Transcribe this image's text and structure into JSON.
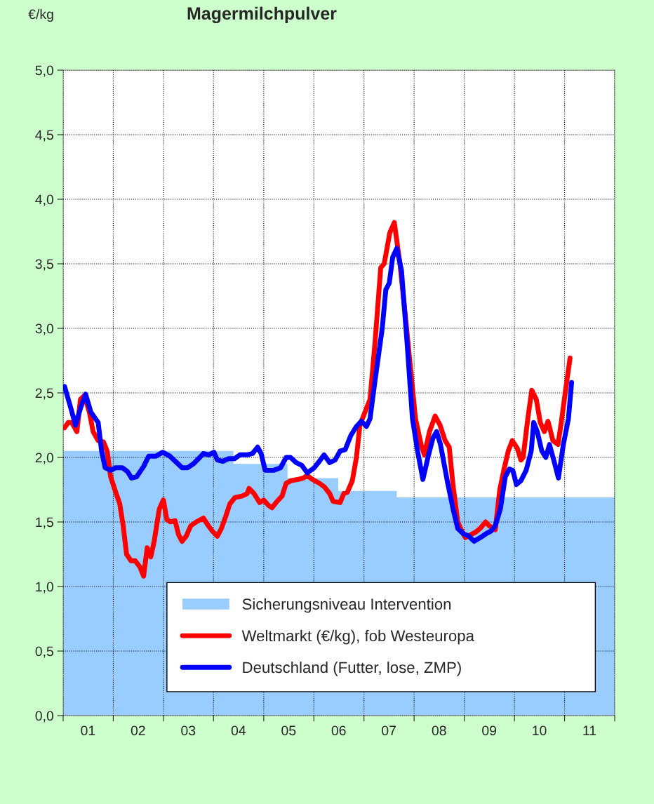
{
  "chart_data": {
    "type": "line",
    "title": "Magermilchpulver",
    "ylabel": "€/kg",
    "xlim": [
      "2001-01-01",
      "2012-01-01"
    ],
    "xticks": [
      {
        "value": "2001-01-01",
        "label": null
      },
      {
        "value": "2001-07-01",
        "label": "01"
      },
      {
        "value": "2002-01-01",
        "label": null
      },
      {
        "value": "2002-07-01",
        "label": "02"
      },
      {
        "value": "2003-01-01",
        "label": null
      },
      {
        "value": "2003-07-01",
        "label": "03"
      },
      {
        "value": "2004-01-01",
        "label": null
      },
      {
        "value": "2004-07-01",
        "label": "04"
      },
      {
        "value": "2005-01-01",
        "label": null
      },
      {
        "value": "2005-07-01",
        "label": "05"
      },
      {
        "value": "2006-01-01",
        "label": null
      },
      {
        "value": "2006-07-01",
        "label": "06"
      },
      {
        "value": "2007-01-01",
        "label": null
      },
      {
        "value": "2007-07-01",
        "label": "07"
      },
      {
        "value": "2008-01-01",
        "label": null
      },
      {
        "value": "2008-07-01",
        "label": "08"
      },
      {
        "value": "2009-01-01",
        "label": null
      },
      {
        "value": "2009-07-01",
        "label": "09"
      },
      {
        "value": "2010-01-01",
        "label": null
      },
      {
        "value": "2010-07-01",
        "label": "10"
      },
      {
        "value": "2011-01-01",
        "label": null
      },
      {
        "value": "2011-07-01",
        "label": "11"
      },
      {
        "value": "2012-01-01",
        "label": null
      }
    ],
    "ylim": [
      0,
      5
    ],
    "yticks": [
      {
        "value": 0,
        "label": "0,0"
      },
      {
        "value": 0.5,
        "label": "0,5"
      },
      {
        "value": 1,
        "label": "1,0"
      },
      {
        "value": 1.5,
        "label": "1,5"
      },
      {
        "value": 2,
        "label": "2,0"
      },
      {
        "value": 2.5,
        "label": "2,5"
      },
      {
        "value": 3,
        "label": "3,0"
      },
      {
        "value": 3.5,
        "label": "3,5"
      },
      {
        "value": 4,
        "label": "4,0"
      },
      {
        "value": 4.5,
        "label": "4,5"
      },
      {
        "value": 5,
        "label": "5,0"
      }
    ],
    "grid": true,
    "legend": "bottom right",
    "line_style": "solid",
    "series": [
      {
        "type": "area",
        "name": "Sicherungsniveau Intervention",
        "color": "#99ccff",
        "x": [
          "2001-01-01",
          "2004-05-25",
          "2004-05-25",
          "2005-06-23",
          "2005-06-23",
          "2006-06-27",
          "2006-06-27",
          "2007-08-28",
          "2007-08-28",
          "2012-01-01"
        ],
        "values": [
          2.05,
          2.05,
          1.95,
          1.95,
          1.84,
          1.84,
          1.74,
          1.74,
          1.69,
          1.69
        ]
      },
      {
        "type": "line",
        "name": "Weltmarkt (€/kg), fob Westeuropa",
        "color": "#ff0000",
        "x": [
          "2001-01-11",
          "2001-02-07",
          "2001-03-05",
          "2001-04-11",
          "2001-05-07",
          "2001-06-05",
          "2001-07-11",
          "2001-08-07",
          "2001-09-13",
          "2001-10-22",
          "2001-11-17",
          "2001-12-13",
          "2002-01-19",
          "2002-02-17",
          "2002-03-13",
          "2002-04-08",
          "2002-05-10",
          "2002-06-09",
          "2002-07-15",
          "2002-08-10",
          "2002-09-05",
          "2002-10-01",
          "2002-10-26",
          "2002-12-02",
          "2003-01-01",
          "2003-01-26",
          "2003-02-21",
          "2003-03-27",
          "2003-04-22",
          "2003-05-17",
          "2003-06-16",
          "2003-07-19",
          "2003-08-28",
          "2003-10-19",
          "2003-11-25",
          "2003-12-23",
          "2004-01-29",
          "2004-02-28",
          "2004-04-01",
          "2004-04-29",
          "2004-06-05",
          "2004-07-26",
          "2004-09-02",
          "2004-09-16",
          "2004-10-22",
          "2004-12-02",
          "2005-01-01",
          "2005-02-03",
          "2005-03-02",
          "2005-04-08",
          "2005-05-14",
          "2005-06-13",
          "2005-07-19",
          "2005-09-09",
          "2005-10-15",
          "2005-11-14",
          "2005-12-20",
          "2006-02-10",
          "2006-03-20",
          "2006-04-26",
          "2006-05-21",
          "2006-07-11",
          "2006-08-07",
          "2006-09-02",
          "2006-10-08",
          "2006-11-07",
          "2006-12-02",
          "2007-01-08",
          "2007-02-14",
          "2007-03-23",
          "2007-05-03",
          "2007-05-28",
          "2007-07-08",
          "2007-08-10",
          "2007-09-20",
          "2007-10-29",
          "2007-12-05",
          "2008-01-11",
          "2008-02-21",
          "2008-03-16",
          "2008-04-22",
          "2008-06-02",
          "2008-07-08",
          "2008-08-14",
          "2008-09-13",
          "2008-10-11",
          "2008-11-14",
          "2008-12-13",
          "2009-01-08",
          "2009-02-14",
          "2009-03-23",
          "2009-04-26",
          "2009-06-05",
          "2009-07-01",
          "2009-08-14",
          "2009-09-16",
          "2009-10-15",
          "2009-11-17",
          "2009-12-16",
          "2010-01-22",
          "2010-02-17",
          "2010-03-05",
          "2010-04-08",
          "2010-05-07",
          "2010-06-09",
          "2010-07-08",
          "2010-08-07",
          "2010-09-02",
          "2010-10-08",
          "2010-11-14",
          "2010-12-09",
          "2011-01-08",
          "2011-02-10"
        ],
        "values": [
          2.23,
          2.27,
          2.27,
          2.2,
          2.45,
          2.48,
          2.35,
          2.2,
          2.13,
          2.12,
          2.05,
          1.85,
          1.73,
          1.64,
          1.48,
          1.25,
          1.2,
          1.2,
          1.15,
          1.08,
          1.3,
          1.23,
          1.35,
          1.6,
          1.67,
          1.52,
          1.5,
          1.51,
          1.4,
          1.35,
          1.39,
          1.47,
          1.5,
          1.53,
          1.47,
          1.43,
          1.39,
          1.45,
          1.55,
          1.64,
          1.69,
          1.7,
          1.72,
          1.76,
          1.72,
          1.65,
          1.67,
          1.63,
          1.61,
          1.66,
          1.7,
          1.8,
          1.82,
          1.83,
          1.84,
          1.86,
          1.83,
          1.8,
          1.77,
          1.72,
          1.66,
          1.65,
          1.72,
          1.73,
          1.82,
          2.0,
          2.25,
          2.35,
          2.45,
          2.9,
          3.47,
          3.5,
          3.74,
          3.82,
          3.5,
          3.1,
          2.7,
          2.3,
          2.1,
          2.02,
          2.2,
          2.32,
          2.25,
          2.13,
          2.08,
          1.78,
          1.5,
          1.43,
          1.38,
          1.4,
          1.42,
          1.45,
          1.5,
          1.47,
          1.44,
          1.75,
          1.9,
          2.05,
          2.13,
          2.07,
          1.98,
          2.0,
          2.3,
          2.52,
          2.45,
          2.27,
          2.2,
          2.28,
          2.13,
          2.1,
          2.28,
          2.52,
          2.77
        ]
      },
      {
        "type": "line",
        "name": "Deutschland (Futter, lose, ZMP)",
        "color": "#0000ff",
        "x": [
          "2001-01-11",
          "2001-02-21",
          "2001-04-01",
          "2001-05-07",
          "2001-06-13",
          "2001-07-22",
          "2001-09-13",
          "2001-10-08",
          "2001-11-03",
          "2001-12-13",
          "2002-01-19",
          "2002-03-09",
          "2002-04-15",
          "2002-05-14",
          "2002-06-20",
          "2002-08-10",
          "2002-09-16",
          "2002-11-07",
          "2002-12-27",
          "2003-02-17",
          "2003-04-08",
          "2003-05-17",
          "2003-06-27",
          "2003-08-07",
          "2003-09-23",
          "2003-10-19",
          "2003-11-28",
          "2004-01-04",
          "2004-01-29",
          "2004-03-09",
          "2004-04-19",
          "2004-06-02",
          "2004-07-11",
          "2004-09-02",
          "2004-10-11",
          "2004-11-17",
          "2004-12-13",
          "2005-01-11",
          "2005-03-13",
          "2005-05-03",
          "2005-06-13",
          "2005-07-15",
          "2005-08-25",
          "2005-10-04",
          "2005-11-14",
          "2006-01-04",
          "2006-02-10",
          "2006-03-16",
          "2006-04-26",
          "2006-06-05",
          "2006-07-11",
          "2006-08-17",
          "2006-09-27",
          "2006-11-07",
          "2006-12-13",
          "2007-01-19",
          "2007-02-14",
          "2007-03-23",
          "2007-05-14",
          "2007-06-09",
          "2007-07-04",
          "2007-07-29",
          "2007-08-28",
          "2007-10-01",
          "2007-11-10",
          "2007-12-20",
          "2008-01-26",
          "2008-03-05",
          "2008-04-11",
          "2008-05-17",
          "2008-06-13",
          "2008-07-11",
          "2008-09-02",
          "2008-10-11",
          "2008-11-14",
          "2008-12-23",
          "2009-02-03",
          "2009-03-13",
          "2009-04-29",
          "2009-06-09",
          "2009-07-15",
          "2009-08-14",
          "2009-09-20",
          "2009-10-26",
          "2009-11-25",
          "2009-12-20",
          "2010-01-15",
          "2010-02-17",
          "2010-03-27",
          "2010-05-03",
          "2010-05-21",
          "2010-06-16",
          "2010-07-19",
          "2010-08-17",
          "2010-09-13",
          "2010-10-19",
          "2010-11-17",
          "2010-12-23",
          "2011-01-29",
          "2011-02-21"
        ],
        "values": [
          2.55,
          2.4,
          2.25,
          2.38,
          2.49,
          2.35,
          2.27,
          2.05,
          1.92,
          1.9,
          1.92,
          1.92,
          1.89,
          1.84,
          1.85,
          1.93,
          2.01,
          2.01,
          2.04,
          2.01,
          1.96,
          1.92,
          1.92,
          1.95,
          2.0,
          2.03,
          2.02,
          2.04,
          1.98,
          1.97,
          1.99,
          1.99,
          2.02,
          2.02,
          2.03,
          2.08,
          2.03,
          1.9,
          1.9,
          1.92,
          2.0,
          2.0,
          1.96,
          1.94,
          1.88,
          1.92,
          1.97,
          2.02,
          1.96,
          1.98,
          2.05,
          2.06,
          2.17,
          2.24,
          2.28,
          2.24,
          2.3,
          2.6,
          3.0,
          3.3,
          3.35,
          3.55,
          3.62,
          3.45,
          2.9,
          2.3,
          2.05,
          1.83,
          2.0,
          2.15,
          2.2,
          2.1,
          1.8,
          1.6,
          1.45,
          1.41,
          1.39,
          1.35,
          1.38,
          1.41,
          1.43,
          1.47,
          1.6,
          1.85,
          1.91,
          1.9,
          1.79,
          1.82,
          1.9,
          2.05,
          2.27,
          2.2,
          2.05,
          2.0,
          2.1,
          1.96,
          1.84,
          2.1,
          2.3,
          2.58
        ]
      }
    ]
  }
}
